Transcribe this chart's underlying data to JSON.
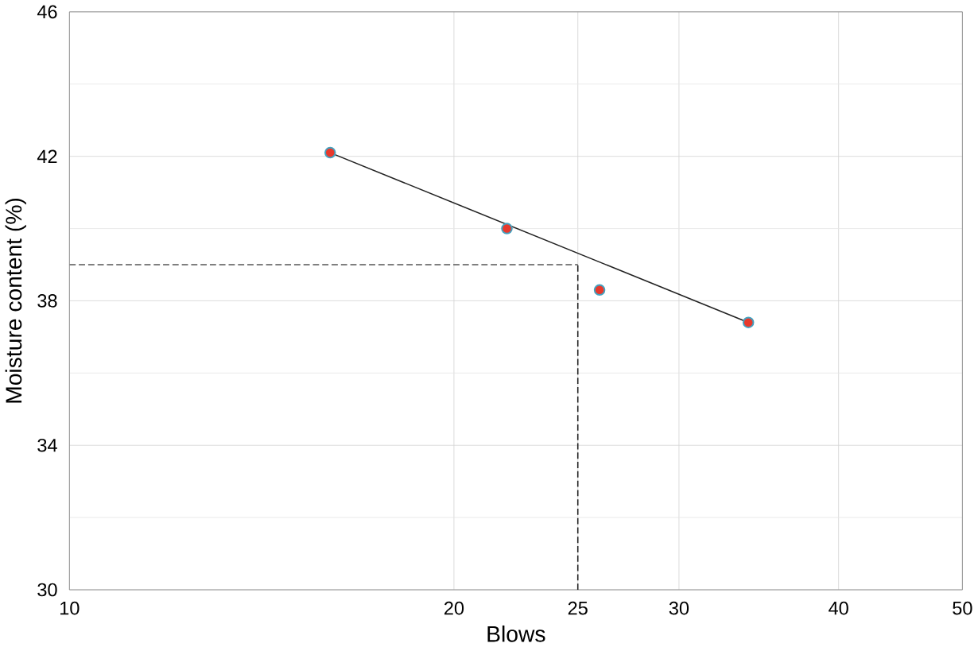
{
  "chart_data": {
    "type": "scatter",
    "xlabel": "Blows",
    "ylabel": "Moisture content (%)",
    "log": "x",
    "xlim": [
      10,
      50
    ],
    "ylim": [
      30,
      46
    ],
    "xticks": [
      10,
      20,
      25,
      30,
      40,
      50
    ],
    "yticks": [
      30,
      34,
      38,
      42,
      46
    ],
    "grid": true,
    "series": [
      {
        "marker": "circle",
        "color": "#e8392c",
        "x": [
          16,
          22,
          26,
          34
        ],
        "values": [
          42.1,
          40.0,
          38.3,
          37.4
        ]
      },
      {
        "type": "line",
        "color": "#222222",
        "x": [
          16,
          34
        ],
        "values": [
          42.1,
          37.4
        ]
      }
    ],
    "ref_lines": [
      {
        "axis": "y",
        "value": 39,
        "line_style": "dashed",
        "color": "#555555"
      },
      {
        "axis": "x",
        "value": 25,
        "line_style": "dashed",
        "color": "#222222"
      }
    ]
  }
}
